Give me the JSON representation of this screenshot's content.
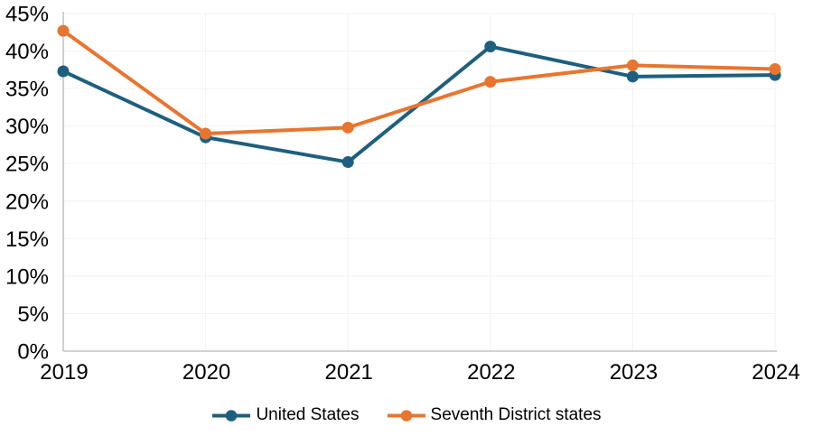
{
  "chart_data": {
    "type": "line",
    "x_labels": [
      "2019",
      "2020",
      "2021",
      "2022",
      "2023",
      "2024"
    ],
    "series": [
      {
        "name": "United States",
        "color": "#1D5F7E",
        "values": [
          37.3,
          28.5,
          25.2,
          40.6,
          36.6,
          36.8
        ]
      },
      {
        "name": "Seventh District states",
        "color": "#E8752F",
        "values": [
          42.7,
          29.0,
          29.8,
          35.9,
          38.1,
          37.6
        ]
      }
    ],
    "title": "",
    "xlabel": "",
    "ylabel": "",
    "ylim": [
      0,
      45
    ],
    "ytick_values": [
      45,
      40,
      35,
      30,
      25,
      20,
      15,
      10,
      5,
      0
    ],
    "ytick_labels": [
      "45%",
      "40%",
      "35%",
      "30%",
      "25%",
      "20%",
      "15%",
      "10%",
      "5%",
      "0%"
    ],
    "grid": true,
    "legend_position": "bottom-center",
    "colors": {
      "grid": "#F2F2F2",
      "axis": "#B7B7B7",
      "text": "#000000"
    }
  }
}
